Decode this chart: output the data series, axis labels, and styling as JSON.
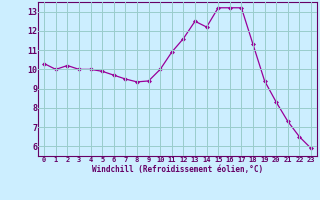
{
  "x": [
    0,
    1,
    2,
    3,
    4,
    5,
    6,
    7,
    8,
    9,
    10,
    11,
    12,
    13,
    14,
    15,
    16,
    17,
    18,
    19,
    20,
    21,
    22,
    23
  ],
  "y": [
    10.3,
    10.0,
    10.2,
    10.0,
    10.0,
    9.9,
    9.7,
    9.5,
    9.35,
    9.4,
    10.0,
    10.9,
    11.6,
    12.5,
    12.2,
    13.2,
    13.2,
    13.2,
    11.3,
    9.4,
    8.3,
    7.3,
    6.5,
    5.9
  ],
  "xlabel": "Windchill (Refroidissement éolien,°C)",
  "xlim": [
    -0.5,
    23.5
  ],
  "ylim": [
    5.5,
    13.5
  ],
  "yticks": [
    6,
    7,
    8,
    9,
    10,
    11,
    12,
    13
  ],
  "xticks": [
    0,
    1,
    2,
    3,
    4,
    5,
    6,
    7,
    8,
    9,
    10,
    11,
    12,
    13,
    14,
    15,
    16,
    17,
    18,
    19,
    20,
    21,
    22,
    23
  ],
  "line_color": "#990099",
  "marker": "D",
  "marker_size": 2.0,
  "bg_color": "#cceeff",
  "grid_color": "#99cccc",
  "axis_color": "#660066",
  "tick_color": "#660066",
  "label_color": "#660066",
  "tick_fontsize": 5.0,
  "xlabel_fontsize": 5.5,
  "linewidth": 0.9
}
